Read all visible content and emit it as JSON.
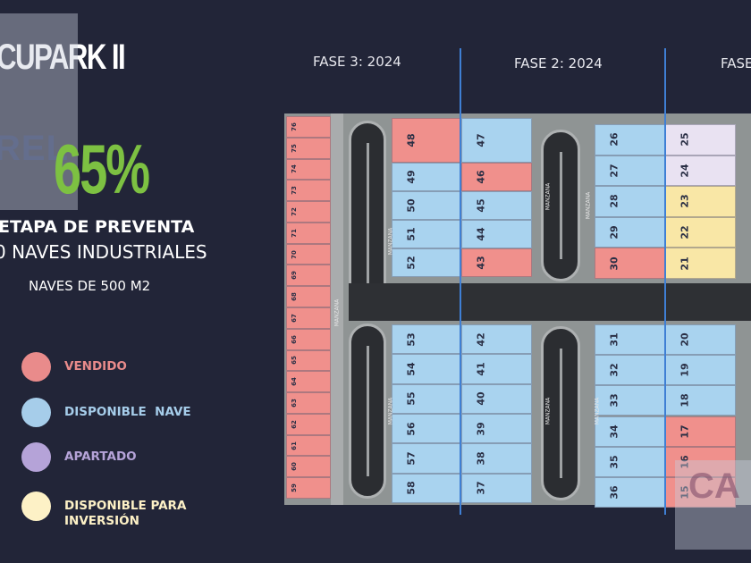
{
  "header": {
    "title": "CUPARK II",
    "brand_fragment": "REL",
    "sold_percent": "65%",
    "stage": "ETAPA DE PREVENTA",
    "naves": "0 NAVES INDUSTRIALES",
    "nave_size": "NAVES DE 500 M2"
  },
  "legend": [
    {
      "status": "vendido",
      "label": "VENDIDO",
      "color": "#e98b8b"
    },
    {
      "status": "disponible",
      "label": "DISPONIBLE  NAVE",
      "color": "#a6cdea"
    },
    {
      "status": "apartado",
      "label": "APARTADO",
      "color": "#b5a3d8"
    },
    {
      "status": "inversion",
      "label": "DISPONIBLE PARA\nINVERSIÓN",
      "color": "#fdf1c6"
    }
  ],
  "lot_colors": {
    "vendido": "#f0908c",
    "disponible": "#a9d3ef",
    "apartado": "#e9e2f2",
    "inversion": "#f9e7a6"
  },
  "phases": [
    "FASE 3: 2024",
    "FASE 2: 2024",
    "FASE"
  ],
  "map": {
    "road_label": "MANZANA",
    "blocks": {
      "west": [
        [
          76,
          "vendido"
        ],
        [
          75,
          "vendido"
        ],
        [
          74,
          "vendido"
        ],
        [
          73,
          "vendido"
        ],
        [
          72,
          "vendido"
        ],
        [
          71,
          "vendido"
        ],
        [
          70,
          "vendido"
        ],
        [
          69,
          "vendido"
        ],
        [
          68,
          "vendido"
        ],
        [
          67,
          "vendido"
        ],
        [
          66,
          "vendido"
        ],
        [
          65,
          "vendido"
        ],
        [
          64,
          "vendido"
        ],
        [
          63,
          "vendido"
        ],
        [
          62,
          "vendido"
        ],
        [
          61,
          "vendido"
        ],
        [
          60,
          "vendido"
        ],
        [
          59,
          "vendido"
        ]
      ],
      "a_north_left": [
        [
          48,
          "vendido"
        ],
        [
          49,
          "disponible"
        ],
        [
          50,
          "disponible"
        ],
        [
          51,
          "disponible"
        ],
        [
          52,
          "disponible"
        ]
      ],
      "a_north_right": [
        [
          47,
          "disponible"
        ],
        [
          46,
          "vendido"
        ],
        [
          45,
          "disponible"
        ],
        [
          44,
          "disponible"
        ],
        [
          43,
          "vendido"
        ]
      ],
      "a_south_left": [
        [
          53,
          "disponible"
        ],
        [
          54,
          "disponible"
        ],
        [
          55,
          "disponible"
        ],
        [
          56,
          "disponible"
        ],
        [
          57,
          "disponible"
        ],
        [
          58,
          "disponible"
        ]
      ],
      "a_south_right": [
        [
          42,
          "disponible"
        ],
        [
          41,
          "disponible"
        ],
        [
          40,
          "disponible"
        ],
        [
          39,
          "disponible"
        ],
        [
          38,
          "disponible"
        ],
        [
          37,
          "disponible"
        ]
      ],
      "b_north_left": [
        [
          26,
          "disponible"
        ],
        [
          27,
          "disponible"
        ],
        [
          28,
          "disponible"
        ],
        [
          29,
          "disponible"
        ],
        [
          30,
          "vendido"
        ]
      ],
      "b_north_right": [
        [
          25,
          "apartado"
        ],
        [
          24,
          "apartado"
        ],
        [
          23,
          "inversion"
        ],
        [
          22,
          "inversion"
        ],
        [
          21,
          "inversion"
        ]
      ],
      "b_south_left": [
        [
          31,
          "disponible"
        ],
        [
          32,
          "disponible"
        ],
        [
          33,
          "disponible"
        ],
        [
          34,
          "disponible"
        ],
        [
          35,
          "disponible"
        ],
        [
          36,
          "disponible"
        ]
      ],
      "b_south_right": [
        [
          20,
          "disponible"
        ],
        [
          19,
          "disponible"
        ],
        [
          18,
          "disponible"
        ],
        [
          17,
          "vendido"
        ],
        [
          16,
          "vendido"
        ],
        [
          15,
          "vendido"
        ]
      ]
    }
  }
}
